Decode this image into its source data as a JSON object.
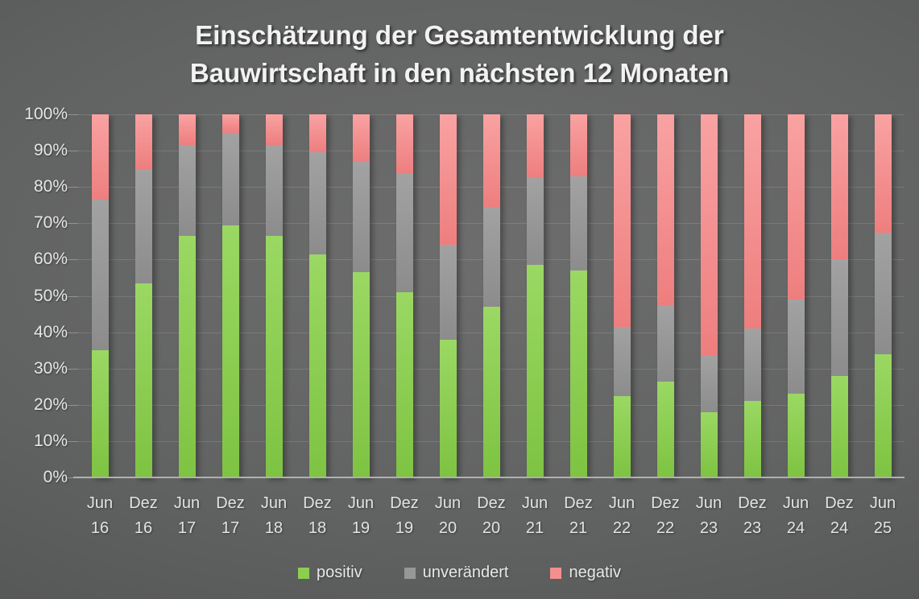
{
  "title": {
    "line1": "Einschätzung der Gesamtentwicklung der",
    "line2": "Bauwirtschaft in den nächsten 12 Monaten"
  },
  "colors": {
    "positiv": "#8ccd52",
    "unveraendert": "#979797",
    "negativ": "#f48f8f",
    "background_center": "#6d6d6d",
    "background_edge": "#4d4e4e",
    "axis_text": "#e6e6e6",
    "title_text": "#f2f2f2"
  },
  "chart_data": {
    "type": "bar",
    "stacked": true,
    "stack_mode": "percent",
    "title": "Einschätzung der Gesamtentwicklung der Bauwirtschaft in den nächsten 12 Monaten",
    "xlabel": "",
    "ylabel": "",
    "ylim": [
      0,
      100
    ],
    "grid": true,
    "legend_position": "bottom",
    "y_ticks": [
      "0%",
      "10%",
      "20%",
      "30%",
      "40%",
      "50%",
      "60%",
      "70%",
      "80%",
      "90%",
      "100%"
    ],
    "categories": [
      "Jun 16",
      "Dez 16",
      "Jun 17",
      "Dez 17",
      "Jun 18",
      "Dez 18",
      "Jun 19",
      "Dez 19",
      "Jun 20",
      "Dez 20",
      "Jun 21",
      "Dez 21",
      "Jun 22",
      "Dez 22",
      "Jun 23",
      "Dez 23",
      "Jun 24",
      "Dez 24",
      "Jun 25"
    ],
    "series": [
      {
        "name": "positiv",
        "color": "#8ccd52",
        "values": [
          35,
          53.5,
          66.5,
          69.5,
          66.5,
          61.5,
          56.5,
          51,
          38,
          47,
          58.5,
          57,
          22.5,
          26.5,
          18,
          21,
          23,
          28,
          34
        ]
      },
      {
        "name": "unverändert",
        "color": "#979797",
        "values": [
          41.5,
          31.5,
          25,
          25.5,
          25,
          28,
          30.5,
          32.5,
          26,
          27.5,
          24,
          26,
          19,
          21,
          15.5,
          20,
          26,
          32,
          33.5
        ]
      },
      {
        "name": "negativ",
        "color": "#f48f8f",
        "values": [
          23.5,
          15,
          8.5,
          5,
          8.5,
          10.5,
          13,
          16.5,
          36,
          25.5,
          17.5,
          17,
          58.5,
          52.5,
          66.5,
          59,
          51,
          40,
          32.5
        ]
      }
    ]
  },
  "legend": {
    "items": [
      {
        "label": "positiv",
        "key": "positiv"
      },
      {
        "label": "unverändert",
        "key": "unveraendert"
      },
      {
        "label": "negativ",
        "key": "negativ"
      }
    ]
  }
}
